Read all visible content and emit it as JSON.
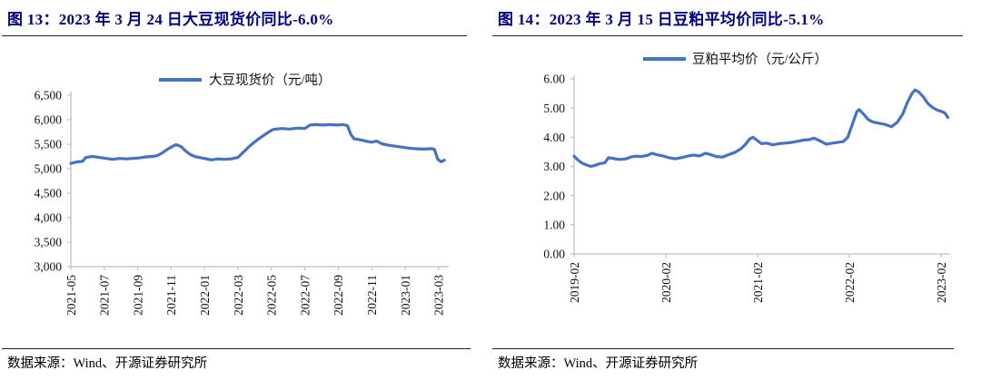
{
  "colors": {
    "line": "#4472C4",
    "title": "#000080",
    "axis": "#BFBFBF",
    "tick_text": "#111111"
  },
  "charts": [
    {
      "title": "图 13：2023 年 3 月 24 日大豆现货价同比-6.0%",
      "source": "数据来源：Wind、开源证券研究所",
      "chart_data": {
        "type": "line",
        "title": "图 13：2023 年 3 月 24 日大豆现货价同比-6.0%",
        "legend": [
          "大豆现货价（元/吨）"
        ],
        "legend_position": "top-center",
        "grid": false,
        "ylabel": "元/吨",
        "ylim": [
          3000,
          6500
        ],
        "yticks": [
          [
            3000,
            "3,000"
          ],
          [
            3500,
            "3,500"
          ],
          [
            4000,
            "4,000"
          ],
          [
            4500,
            "4,500"
          ],
          [
            5000,
            "5,000"
          ],
          [
            5500,
            "5,500"
          ],
          [
            6000,
            "6,000"
          ],
          [
            6500,
            "6,500"
          ]
        ],
        "x_unit": "months since 2021-05",
        "xticks": [
          [
            0,
            "2021-05"
          ],
          [
            2,
            "2021-07"
          ],
          [
            4,
            "2021-09"
          ],
          [
            6,
            "2021-11"
          ],
          [
            8,
            "2022-01"
          ],
          [
            10,
            "2022-03"
          ],
          [
            12,
            "2022-05"
          ],
          [
            14,
            "2022-07"
          ],
          [
            16,
            "2022-09"
          ],
          [
            18,
            "2022-11"
          ],
          [
            20,
            "2023-01"
          ],
          [
            22,
            "2023-03"
          ]
        ],
        "series": [
          {
            "name": "大豆现货价（元/吨）",
            "points": [
              [
                0,
                5110
              ],
              [
                0.4,
                5140
              ],
              [
                0.7,
                5150
              ],
              [
                0.9,
                5230
              ],
              [
                1.3,
                5250
              ],
              [
                1.7,
                5230
              ],
              [
                2.1,
                5210
              ],
              [
                2.5,
                5190
              ],
              [
                2.9,
                5210
              ],
              [
                3.3,
                5200
              ],
              [
                3.7,
                5210
              ],
              [
                4.1,
                5220
              ],
              [
                4.5,
                5240
              ],
              [
                4.9,
                5250
              ],
              [
                5.2,
                5270
              ],
              [
                5.5,
                5330
              ],
              [
                5.8,
                5400
              ],
              [
                6.1,
                5460
              ],
              [
                6.3,
                5490
              ],
              [
                6.6,
                5450
              ],
              [
                6.9,
                5350
              ],
              [
                7.2,
                5280
              ],
              [
                7.5,
                5240
              ],
              [
                8.0,
                5210
              ],
              [
                8.4,
                5180
              ],
              [
                8.8,
                5200
              ],
              [
                9.2,
                5190
              ],
              [
                9.6,
                5200
              ],
              [
                10.0,
                5230
              ],
              [
                10.3,
                5330
              ],
              [
                10.6,
                5430
              ],
              [
                10.9,
                5520
              ],
              [
                11.2,
                5600
              ],
              [
                11.5,
                5670
              ],
              [
                11.8,
                5740
              ],
              [
                12.1,
                5800
              ],
              [
                12.6,
                5820
              ],
              [
                13.1,
                5810
              ],
              [
                13.6,
                5830
              ],
              [
                14.0,
                5820
              ],
              [
                14.3,
                5890
              ],
              [
                14.7,
                5900
              ],
              [
                15.1,
                5890
              ],
              [
                15.5,
                5900
              ],
              [
                15.9,
                5890
              ],
              [
                16.3,
                5900
              ],
              [
                16.55,
                5880
              ],
              [
                16.75,
                5700
              ],
              [
                16.95,
                5610
              ],
              [
                17.3,
                5590
              ],
              [
                17.7,
                5560
              ],
              [
                18.0,
                5540
              ],
              [
                18.3,
                5565
              ],
              [
                18.6,
                5510
              ],
              [
                19.0,
                5480
              ],
              [
                19.4,
                5460
              ],
              [
                19.8,
                5440
              ],
              [
                20.2,
                5420
              ],
              [
                20.7,
                5405
              ],
              [
                21.2,
                5400
              ],
              [
                21.6,
                5410
              ],
              [
                21.75,
                5395
              ],
              [
                21.95,
                5195
              ],
              [
                22.15,
                5140
              ],
              [
                22.35,
                5175
              ]
            ]
          }
        ]
      }
    },
    {
      "title": "图 14：2023 年 3 月 15 日豆粕平均价同比-5.1%",
      "source": "数据来源：Wind、开源证券研究所",
      "chart_data": {
        "type": "line",
        "title": "图 14：2023 年 3 月 15 日豆粕平均价同比-5.1%",
        "legend": [
          "豆粕平均价（元/公斤）"
        ],
        "legend_position": "top-center",
        "grid": false,
        "ylabel": "元/公斤",
        "ylim": [
          0,
          6
        ],
        "yticks": [
          [
            0,
            "0.00"
          ],
          [
            1,
            "1.00"
          ],
          [
            2,
            "2.00"
          ],
          [
            3,
            "3.00"
          ],
          [
            4,
            "4.00"
          ],
          [
            5,
            "5.00"
          ],
          [
            6,
            "6.00"
          ]
        ],
        "x_unit": "months since 2019-02",
        "xticks": [
          [
            0,
            "2019-02"
          ],
          [
            12,
            "2020-02"
          ],
          [
            24,
            "2021-02"
          ],
          [
            36,
            "2022-02"
          ],
          [
            48,
            "2023-02"
          ]
        ],
        "series": [
          {
            "name": "豆粕平均价（元/公斤）",
            "points": [
              [
                0,
                3.35
              ],
              [
                0.5,
                3.22
              ],
              [
                1.0,
                3.12
              ],
              [
                1.6,
                3.05
              ],
              [
                2.2,
                3.0
              ],
              [
                2.8,
                3.04
              ],
              [
                3.4,
                3.1
              ],
              [
                4.0,
                3.12
              ],
              [
                4.5,
                3.3
              ],
              [
                5.0,
                3.28
              ],
              [
                5.6,
                3.25
              ],
              [
                6.2,
                3.24
              ],
              [
                6.8,
                3.26
              ],
              [
                7.4,
                3.32
              ],
              [
                8.0,
                3.35
              ],
              [
                8.8,
                3.34
              ],
              [
                9.6,
                3.38
              ],
              [
                10.2,
                3.45
              ],
              [
                10.8,
                3.4
              ],
              [
                11.6,
                3.36
              ],
              [
                12.4,
                3.3
              ],
              [
                13.2,
                3.26
              ],
              [
                14.0,
                3.3
              ],
              [
                14.8,
                3.35
              ],
              [
                15.6,
                3.39
              ],
              [
                16.4,
                3.36
              ],
              [
                17.2,
                3.45
              ],
              [
                17.8,
                3.41
              ],
              [
                18.6,
                3.34
              ],
              [
                19.4,
                3.32
              ],
              [
                20.2,
                3.4
              ],
              [
                21.0,
                3.48
              ],
              [
                21.8,
                3.6
              ],
              [
                22.4,
                3.75
              ],
              [
                23.0,
                3.95
              ],
              [
                23.4,
                4.0
              ],
              [
                23.9,
                3.9
              ],
              [
                24.5,
                3.78
              ],
              [
                25.2,
                3.8
              ],
              [
                26.0,
                3.74
              ],
              [
                26.8,
                3.78
              ],
              [
                27.6,
                3.8
              ],
              [
                28.4,
                3.82
              ],
              [
                29.2,
                3.86
              ],
              [
                30.0,
                3.9
              ],
              [
                30.8,
                3.92
              ],
              [
                31.4,
                3.97
              ],
              [
                32.2,
                3.87
              ],
              [
                33.0,
                3.76
              ],
              [
                33.8,
                3.8
              ],
              [
                34.6,
                3.83
              ],
              [
                35.2,
                3.85
              ],
              [
                35.8,
                4.0
              ],
              [
                36.4,
                4.45
              ],
              [
                37.0,
                4.88
              ],
              [
                37.3,
                4.95
              ],
              [
                37.9,
                4.78
              ],
              [
                38.5,
                4.6
              ],
              [
                39.1,
                4.52
              ],
              [
                39.9,
                4.48
              ],
              [
                40.7,
                4.44
              ],
              [
                41.5,
                4.36
              ],
              [
                42.3,
                4.52
              ],
              [
                43.0,
                4.8
              ],
              [
                43.6,
                5.2
              ],
              [
                44.2,
                5.5
              ],
              [
                44.6,
                5.62
              ],
              [
                45.1,
                5.55
              ],
              [
                45.7,
                5.38
              ],
              [
                46.3,
                5.15
              ],
              [
                46.9,
                5.02
              ],
              [
                47.5,
                4.93
              ],
              [
                48.1,
                4.88
              ],
              [
                48.5,
                4.83
              ],
              [
                48.9,
                4.68
              ]
            ]
          }
        ]
      }
    }
  ]
}
